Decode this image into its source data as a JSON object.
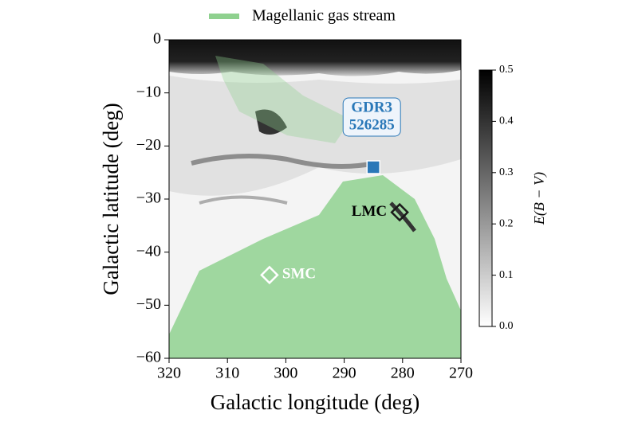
{
  "chart_data": {
    "type": "scatter",
    "legend": {
      "label": "Magellanic gas stream",
      "color": "#8fd18f"
    },
    "xlabel": "Galactic longitude (deg)",
    "ylabel": "Galactic latitude (deg)",
    "xlim": [
      320,
      270
    ],
    "xticks": [
      320,
      310,
      300,
      290,
      280,
      270
    ],
    "ylim": [
      -60,
      0
    ],
    "yticks": [
      0,
      {
        "value": -10,
        "label": "−10"
      },
      {
        "value": -20,
        "label": "−20"
      },
      {
        "value": -30,
        "label": "−30"
      },
      {
        "value": -40,
        "label": "−40"
      },
      {
        "value": -50,
        "label": "−50"
      },
      {
        "value": -60,
        "label": "−60"
      }
    ],
    "points": [
      {
        "label": [
          "GDR3",
          "526285"
        ],
        "x": 285,
        "y": -24,
        "marker": "square",
        "color": "#2a78b8"
      },
      {
        "label": [
          "LMC"
        ],
        "x": 280.5,
        "y": -32.5,
        "marker": "diamond",
        "color": "#1a1a1a"
      },
      {
        "label": [
          "SMC"
        ],
        "x": 302.8,
        "y": -44.3,
        "marker": "diamond",
        "color": "#ffffff"
      }
    ],
    "colorbar": {
      "label": "E(B − V)",
      "lim": [
        0,
        0.5
      ],
      "ticks": [
        {
          "value": 0,
          "label": "0.0"
        },
        0.1,
        0.2,
        0.3,
        0.4,
        0.5
      ]
    }
  }
}
